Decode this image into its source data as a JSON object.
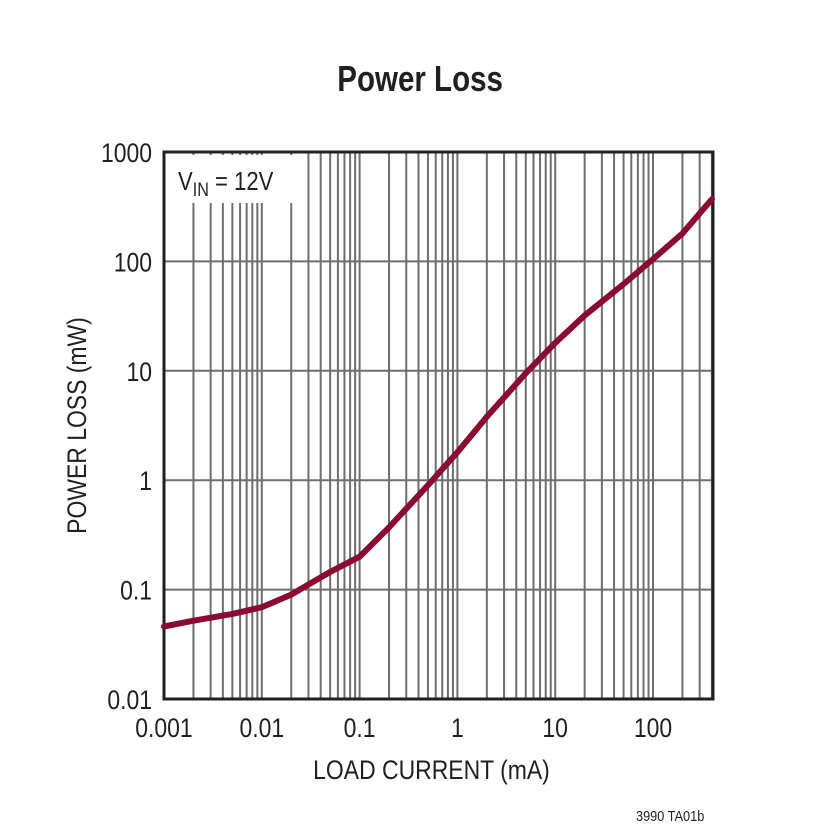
{
  "chart_data": {
    "type": "line",
    "title": "Power Loss",
    "xlabel": "LOAD CURRENT (mA)",
    "ylabel": "POWER LOSS (mW)",
    "xscale": "log",
    "yscale": "log",
    "xlim": [
      0.001,
      400
    ],
    "ylim": [
      0.01,
      1000
    ],
    "xticks": [
      "0.001",
      "0.01",
      "0.1",
      "1",
      "10",
      "100"
    ],
    "yticks": [
      "0.01",
      "0.1",
      "1",
      "10",
      "100",
      "1000"
    ],
    "grid": true,
    "annotation": "VIN = 12V",
    "series": [
      {
        "name": "VIN = 12V",
        "color": "#8b0a32",
        "x": [
          0.001,
          0.002,
          0.005,
          0.01,
          0.02,
          0.05,
          0.1,
          0.2,
          0.5,
          1,
          2,
          5,
          10,
          20,
          50,
          100,
          200,
          400
        ],
        "y": [
          0.046,
          0.052,
          0.06,
          0.069,
          0.09,
          0.145,
          0.2,
          0.37,
          0.9,
          1.8,
          3.8,
          9.5,
          18,
          32,
          62,
          105,
          180,
          370
        ]
      }
    ]
  },
  "annotation": {
    "v": "V",
    "sub": "IN",
    "rest": " = 12V"
  },
  "footer": "3990 TA01b"
}
